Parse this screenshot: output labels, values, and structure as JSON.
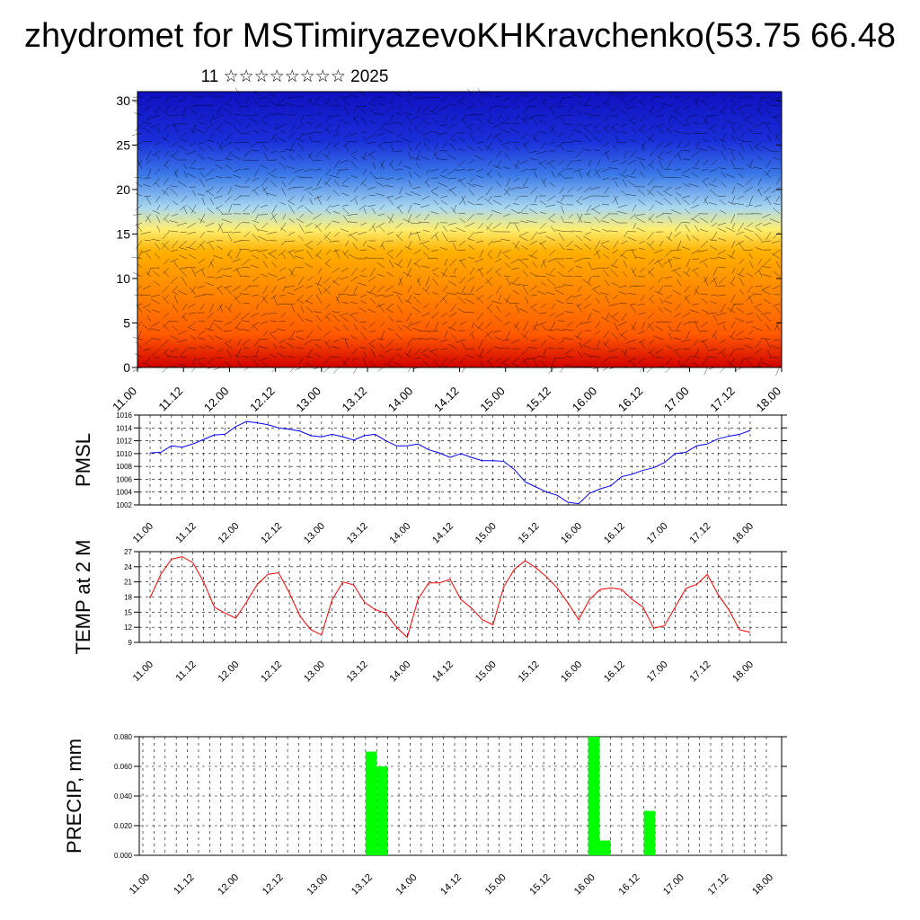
{
  "title": "zhydromet for MSTimiryazevoKHKravchenko(53.75 66.48",
  "subtitle": "11 ☆☆☆☆☆☆☆☆ 2025",
  "time_ticks": [
    "11.00",
    "11.12",
    "12.00",
    "12.12",
    "13.00",
    "13.12",
    "14.00",
    "14.12",
    "15.00",
    "15.12",
    "16.00",
    "16.12",
    "17.00",
    "17.12",
    "18.00"
  ],
  "chart_data": [
    {
      "type": "heatmap",
      "name": "cross-section",
      "ylabel": "",
      "ylim": [
        0,
        31
      ],
      "yticks": [
        0,
        5,
        10,
        15,
        20,
        25,
        30
      ],
      "xlim": [
        0,
        168
      ],
      "colormap": [
        "#d00000",
        "#ff5a00",
        "#ffb000",
        "#ffee70",
        "#a8d8f0",
        "#3b78e8",
        "#1a2fd8",
        "#1010c0"
      ],
      "note_levels": "warm (red) near surface, transitioning to yellow ~15 and blue above ~18",
      "vectors": "wind barbs overlaid"
    },
    {
      "type": "line",
      "name": "PMSL",
      "ylabel": "PMSL",
      "ylim": [
        1002,
        1016
      ],
      "yticks": [
        1002,
        1004,
        1006,
        1008,
        1010,
        1012,
        1014,
        1016
      ],
      "color": "#0000ff",
      "x_step_hours": 3,
      "values": [
        1010.1,
        1010.2,
        1011.2,
        1011.0,
        1011.5,
        1012.2,
        1012.9,
        1013.0,
        1014.2,
        1015.0,
        1014.8,
        1014.5,
        1014.0,
        1013.8,
        1013.5,
        1012.8,
        1012.6,
        1013.0,
        1012.6,
        1012.1,
        1012.8,
        1013.0,
        1012.0,
        1011.2,
        1011.2,
        1011.5,
        1010.6,
        1010.1,
        1009.4,
        1010.0,
        1009.4,
        1008.9,
        1008.9,
        1008.8,
        1007.5,
        1005.6,
        1004.8,
        1004.0,
        1003.5,
        1002.4,
        1002.2,
        1003.8,
        1004.5,
        1005.0,
        1006.4,
        1006.8,
        1007.4,
        1007.8,
        1008.6,
        1010.0,
        1010.2,
        1011.2,
        1011.5,
        1012.3,
        1012.7,
        1013.0,
        1013.6
      ]
    },
    {
      "type": "line",
      "name": "TEMP at 2 M",
      "ylabel": "TEMP at 2 M",
      "ylim": [
        9,
        27
      ],
      "yticks": [
        9,
        12,
        15,
        18,
        21,
        24,
        27
      ],
      "color": "#ff0000",
      "x_step_hours": 3,
      "values": [
        17.8,
        22.5,
        25.5,
        26.0,
        24.8,
        21.0,
        16.0,
        14.8,
        13.8,
        17.0,
        20.5,
        22.5,
        22.8,
        18.8,
        14.2,
        11.5,
        10.5,
        17.5,
        21.0,
        20.4,
        17.0,
        15.5,
        14.8,
        12.0,
        10.0,
        17.5,
        20.8,
        20.8,
        21.5,
        17.5,
        15.8,
        13.5,
        12.5,
        20.0,
        23.5,
        25.2,
        23.8,
        22.0,
        19.8,
        16.8,
        13.5,
        17.5,
        19.5,
        19.8,
        19.5,
        17.5,
        16.0,
        11.8,
        12.3,
        16.0,
        19.7,
        20.5,
        22.5,
        18.5,
        15.5,
        11.5,
        11.0
      ]
    },
    {
      "type": "bar",
      "name": "PRECIP, mm",
      "ylabel": "PRECIP, mm",
      "ylim": [
        0,
        0.08
      ],
      "yticks": [
        "0.000",
        "0.020",
        "0.040",
        "0.060",
        "0.080"
      ],
      "color": "#00ff00",
      "x_step_hours": 3,
      "values": [
        0,
        0,
        0,
        0,
        0,
        0,
        0,
        0,
        0,
        0,
        0,
        0,
        0,
        0,
        0,
        0,
        0,
        0,
        0,
        0,
        0.07,
        0.06,
        0,
        0,
        0,
        0,
        0,
        0,
        0,
        0,
        0,
        0,
        0,
        0,
        0,
        0,
        0,
        0,
        0,
        0,
        0.08,
        0.01,
        0,
        0,
        0,
        0.03,
        0,
        0,
        0,
        0,
        0,
        0,
        0,
        0,
        0,
        0,
        0
      ]
    }
  ]
}
